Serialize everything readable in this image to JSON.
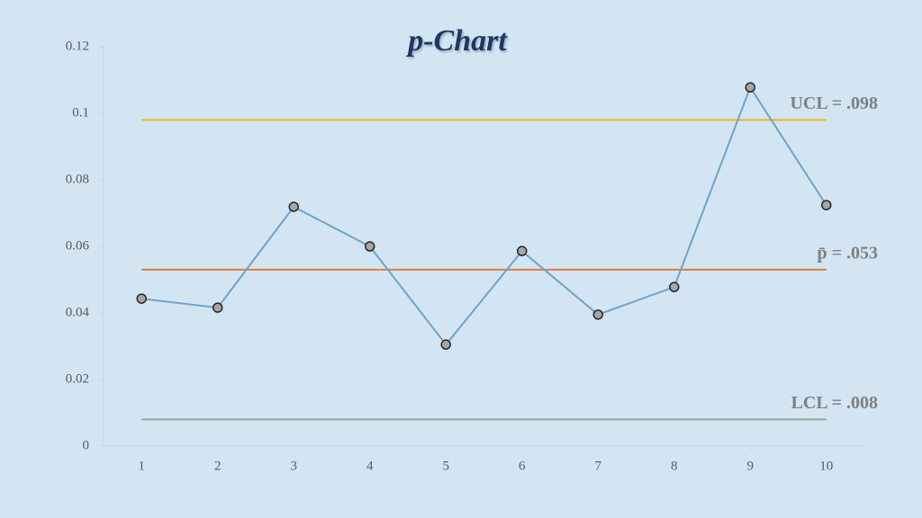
{
  "chart_data": {
    "type": "line",
    "title": "p-Chart",
    "x": [
      1,
      2,
      3,
      4,
      5,
      6,
      7,
      8,
      9,
      10
    ],
    "values": [
      0.0443,
      0.0416,
      0.0719,
      0.06,
      0.0305,
      0.0586,
      0.0395,
      0.0478,
      0.1078,
      0.0724
    ],
    "color": "#6fa3c8",
    "xlim": [
      0.5,
      10.5
    ],
    "xticks": [
      1,
      2,
      3,
      4,
      5,
      6,
      7,
      8,
      9,
      10
    ],
    "ylim": [
      0,
      0.12
    ],
    "yticks": [
      0,
      0.02,
      0.04,
      0.06,
      0.08,
      0.1,
      0.12
    ],
    "reference_lines": [
      {
        "value": 0.098,
        "label": "UCL = .098",
        "color": "#e8b923"
      },
      {
        "value": 0.053,
        "label": "p̄ = .053",
        "color": "#e07b39"
      },
      {
        "value": 0.008,
        "label": "LCL = .008",
        "color": "#a0a0a0"
      }
    ]
  }
}
